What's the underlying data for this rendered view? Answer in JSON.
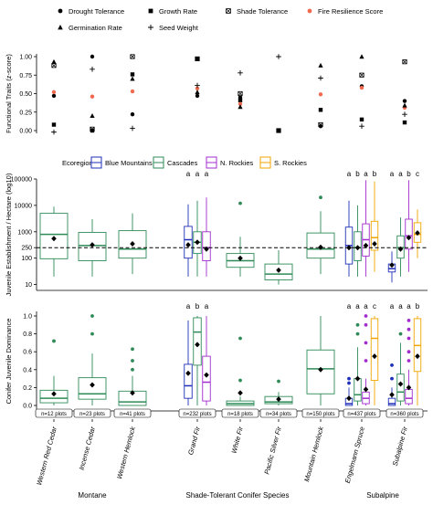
{
  "chart_data": [
    {
      "type": "scatter",
      "panel": "functional-traits",
      "ylabel": "Functional Traits (z-score)",
      "ylim": [
        0,
        1
      ],
      "yticks": [
        "0.00",
        "0.25",
        "0.50",
        "0.75",
        "1.00"
      ],
      "categories": [
        "Western Red Cedar",
        "Incense Cedar",
        "Western Hemlock",
        "Grand Fir",
        "White Fir",
        "Pacific Silver Fir",
        "Mountain Hemlock",
        "Engelmann Spruce",
        "Subalpine Fir"
      ],
      "legend": [
        "Drought Tolerance",
        "Growth Rate",
        "Shade Tolerance",
        "Fire Resilience Score",
        "Germination Rate",
        "Seed Weight"
      ],
      "series": [
        {
          "name": "Drought Tolerance",
          "marker": "circle",
          "color": "#000000",
          "values": [
            0.47,
            1.0,
            0.22,
            0.47,
            0.45,
            null,
            0.06,
            0.6,
            0.4
          ]
        },
        {
          "name": "Growth Rate",
          "marker": "square",
          "color": "#000000",
          "values": [
            0.08,
            0.0,
            0.76,
            0.97,
            0.41,
            0.0,
            0.28,
            0.15,
            0.11
          ]
        },
        {
          "name": "Shade Tolerance",
          "marker": "boxx",
          "color": "#000000",
          "values": [
            0.88,
            0.02,
            1.0,
            0.97,
            0.5,
            0.0,
            0.08,
            0.75,
            0.93
          ]
        },
        {
          "name": "Fire Resilience Score",
          "marker": "circle",
          "color": "#f06a50",
          "values": [
            0.52,
            0.46,
            0.53,
            0.57,
            0.36,
            null,
            0.49,
            0.58,
            0.31
          ]
        },
        {
          "name": "Germination Rate",
          "marker": "triangle",
          "color": "#000000",
          "values": [
            0.93,
            0.2,
            0.7,
            0.52,
            0.32,
            null,
            0.88,
            1.0,
            0.34
          ]
        },
        {
          "name": "Seed Weight",
          "marker": "plus",
          "color": "#000000",
          "values": [
            -0.02,
            0.83,
            0.03,
            0.61,
            0.78,
            1.0,
            0.71,
            0.06,
            0.22
          ]
        }
      ]
    },
    {
      "type": "box",
      "panel": "juvenile-establishment",
      "ylabel": "Juvenile Establishment / Hectare (log10)",
      "scale": "log",
      "ylim": [
        6,
        100000
      ],
      "yticks": [
        "10",
        "100",
        "250",
        "1000",
        "10000",
        "100000"
      ],
      "reference_line": 250,
      "legend_title": "Ecoregion",
      "legend": [
        {
          "name": "Blue Mountains",
          "color": "#1f2fb8"
        },
        {
          "name": "Cascades",
          "color": "#2e8b57"
        },
        {
          "name": "N. Rockies",
          "color": "#a32ccf"
        },
        {
          "name": "S. Rockies",
          "color": "#f0a500"
        }
      ],
      "groups": [
        {
          "species": "Western Red Cedar",
          "boxes": [
            {
              "ecoregion": "Cascades",
              "whisker_low": 20,
              "q1": 95,
              "median": 800,
              "q3": 5000,
              "whisker_high": 9000,
              "mean": 550,
              "outliers": []
            }
          ]
        },
        {
          "species": "Incense Cedar",
          "boxes": [
            {
              "ecoregion": "Cascades",
              "whisker_low": 20,
              "q1": 80,
              "median": 300,
              "q3": 950,
              "whisker_high": 3000,
              "mean": 320,
              "outliers": []
            }
          ]
        },
        {
          "species": "Western Hemlock",
          "boxes": [
            {
              "ecoregion": "Cascades",
              "whisker_low": 25,
              "q1": 100,
              "median": 220,
              "q3": 1100,
              "whisker_high": 5000,
              "mean": 350,
              "outliers": []
            }
          ]
        },
        {
          "species": "Grand Fir",
          "letters": [
            "a",
            "a",
            "a"
          ],
          "boxes": [
            {
              "ecoregion": "Blue Mountains",
              "whisker_low": 20,
              "q1": 100,
              "median": 500,
              "q3": 1600,
              "whisker_high": 11000,
              "mean": 320,
              "outliers": []
            },
            {
              "ecoregion": "Cascades",
              "whisker_low": 20,
              "q1": 150,
              "median": 400,
              "q3": 1000,
              "whisker_high": 15000,
              "mean": 400,
              "outliers": []
            },
            {
              "ecoregion": "N. Rockies",
              "whisker_low": 20,
              "q1": 80,
              "median": 250,
              "q3": 1000,
              "whisker_high": 20000,
              "mean": 220,
              "outliers": []
            }
          ]
        },
        {
          "species": "White Fir",
          "boxes": [
            {
              "ecoregion": "Cascades",
              "whisker_low": 20,
              "q1": 45,
              "median": 80,
              "q3": 150,
              "whisker_high": 650,
              "mean": 100,
              "outliers": [
                12000
              ]
            }
          ]
        },
        {
          "species": "Pacific Silver Fir",
          "boxes": [
            {
              "ecoregion": "Cascades",
              "whisker_low": 10,
              "q1": 15,
              "median": 25,
              "q3": 60,
              "whisker_high": 200,
              "mean": 35,
              "outliers": []
            }
          ]
        },
        {
          "species": "Mountain Hemlock",
          "boxes": [
            {
              "ecoregion": "Cascades",
              "whisker_low": 25,
              "q1": 100,
              "median": 220,
              "q3": 900,
              "whisker_high": 6000,
              "mean": 260,
              "outliers": [
                20000
              ]
            }
          ]
        },
        {
          "species": "Engelmann Spruce",
          "letters": [
            "a",
            "b",
            "a",
            "b"
          ],
          "boxes": [
            {
              "ecoregion": "Blue Mountains",
              "whisker_low": 20,
              "q1": 60,
              "median": 300,
              "q3": 1500,
              "whisker_high": 15000,
              "mean": 250,
              "outliers": []
            },
            {
              "ecoregion": "Cascades",
              "whisker_low": 20,
              "q1": 80,
              "median": 250,
              "q3": 1000,
              "whisker_high": 10000,
              "mean": 250,
              "outliers": []
            },
            {
              "ecoregion": "N. Rockies",
              "whisker_low": 20,
              "q1": 120,
              "median": 500,
              "q3": 2000,
              "whisker_high": 90000,
              "mean": 300,
              "outliers": []
            },
            {
              "ecoregion": "S. Rockies",
              "whisker_low": 30,
              "q1": 200,
              "median": 600,
              "q3": 2500,
              "whisker_high": 80000,
              "mean": 350,
              "outliers": []
            }
          ]
        },
        {
          "species": "Subalpine Fir",
          "letters": [
            "a",
            "a",
            "b",
            "c"
          ],
          "boxes": [
            {
              "ecoregion": "Blue Mountains",
              "whisker_low": 12,
              "q1": 30,
              "median": 40,
              "q3": 60,
              "whisker_high": 180,
              "mean": 55,
              "outliers": []
            },
            {
              "ecoregion": "Cascades",
              "whisker_low": 20,
              "q1": 100,
              "median": 250,
              "q3": 700,
              "whisker_high": 3500,
              "mean": 220,
              "outliers": []
            },
            {
              "ecoregion": "N. Rockies",
              "whisker_low": 30,
              "q1": 220,
              "median": 700,
              "q3": 3000,
              "whisker_high": 90000,
              "mean": 600,
              "outliers": []
            },
            {
              "ecoregion": "S. Rockies",
              "whisker_low": 100,
              "q1": 400,
              "median": 800,
              "q3": 2200,
              "whisker_high": 7000,
              "mean": 900,
              "outliers": []
            }
          ]
        }
      ]
    },
    {
      "type": "box",
      "panel": "conifer-juvenile-dominance",
      "ylabel": "Conifer Juvenile Dominance",
      "ylim": [
        0,
        1
      ],
      "yticks": [
        "0.0",
        "0.2",
        "0.4",
        "0.6",
        "0.8",
        "1.0"
      ],
      "groups": [
        {
          "species": "Western Red Cedar",
          "n": "n=12 plots",
          "boxes": [
            {
              "ecoregion": "Cascades",
              "whisker_low": 0.0,
              "q1": 0.03,
              "median": 0.08,
              "q3": 0.17,
              "whisker_high": 0.33,
              "mean": 0.13,
              "outliers": [
                0.72
              ]
            }
          ]
        },
        {
          "species": "Incense Cedar",
          "n": "n=23 plots",
          "boxes": [
            {
              "ecoregion": "Cascades",
              "whisker_low": 0.0,
              "q1": 0.07,
              "median": 0.13,
              "q3": 0.31,
              "whisker_high": 0.58,
              "mean": 0.23,
              "outliers": [
                0.8,
                1.0
              ]
            }
          ]
        },
        {
          "species": "Western Hemlock",
          "n": "n=41 plots",
          "boxes": [
            {
              "ecoregion": "Cascades",
              "whisker_low": 0.0,
              "q1": 0.0,
              "median": 0.04,
              "q3": 0.16,
              "whisker_high": 0.33,
              "mean": 0.14,
              "outliers": [
                0.4,
                0.5,
                0.63
              ]
            }
          ]
        },
        {
          "species": "Grand Fir",
          "n": "n=232 plots",
          "letters": [
            "a",
            "b",
            "a"
          ],
          "boxes": [
            {
              "ecoregion": "Blue Mountains",
              "whisker_low": 0.0,
              "q1": 0.08,
              "median": 0.22,
              "q3": 0.46,
              "whisker_high": 0.95,
              "mean": 0.36,
              "outliers": []
            },
            {
              "ecoregion": "Cascades",
              "whisker_low": 0.0,
              "q1": 0.45,
              "median": 0.82,
              "q3": 0.98,
              "whisker_high": 1.0,
              "mean": 0.68,
              "outliers": []
            },
            {
              "ecoregion": "N. Rockies",
              "whisker_low": 0.0,
              "q1": 0.05,
              "median": 0.26,
              "q3": 0.55,
              "whisker_high": 1.0,
              "mean": 0.34,
              "outliers": []
            }
          ]
        },
        {
          "species": "White Fir",
          "n": "n=18 plots",
          "boxes": [
            {
              "ecoregion": "Cascades",
              "whisker_low": 0.0,
              "q1": 0.0,
              "median": 0.02,
              "q3": 0.05,
              "whisker_high": 0.1,
              "mean": 0.14,
              "outliers": [
                0.28,
                0.75
              ]
            }
          ]
        },
        {
          "species": "Pacific Silver Fir",
          "n": "n=34 plots",
          "boxes": [
            {
              "ecoregion": "Cascades",
              "whisker_low": 0.0,
              "q1": 0.02,
              "median": 0.04,
              "q3": 0.1,
              "whisker_high": 0.15,
              "mean": 0.07,
              "outliers": [
                0.27
              ]
            }
          ]
        },
        {
          "species": "Mountain Hemlock",
          "n": "n=150 plots",
          "boxes": [
            {
              "ecoregion": "Cascades",
              "whisker_low": 0.0,
              "q1": 0.13,
              "median": 0.41,
              "q3": 0.62,
              "whisker_high": 1.0,
              "mean": 0.4,
              "outliers": []
            }
          ]
        },
        {
          "species": "Engelmann Spruce",
          "n": "n=437 plots",
          "letters": [
            "a",
            "a",
            "a",
            "c"
          ],
          "boxes": [
            {
              "ecoregion": "Blue Mountains",
              "whisker_low": 0.0,
              "q1": 0.0,
              "median": 0.02,
              "q3": 0.08,
              "whisker_high": 0.2,
              "mean": 0.08,
              "outliers": [
                0.25,
                0.3
              ]
            },
            {
              "ecoregion": "Cascades",
              "whisker_low": 0.0,
              "q1": 0.05,
              "median": 0.12,
              "q3": 0.3,
              "whisker_high": 0.65,
              "mean": 0.3,
              "outliers": [
                0.8,
                0.9
              ]
            },
            {
              "ecoregion": "N. Rockies",
              "whisker_low": 0.0,
              "q1": 0.02,
              "median": 0.08,
              "q3": 0.15,
              "whisker_high": 0.3,
              "mean": 0.18,
              "outliers": [
                0.5,
                0.7,
                0.9,
                1.0
              ]
            },
            {
              "ecoregion": "S. Rockies",
              "whisker_low": 0.0,
              "q1": 0.28,
              "median": 0.75,
              "q3": 0.97,
              "whisker_high": 1.0,
              "mean": 0.55,
              "outliers": []
            }
          ]
        },
        {
          "species": "Subalpine Fir",
          "n": "n=360 plots",
          "letters": [
            "a",
            "a",
            "a",
            "b"
          ],
          "boxes": [
            {
              "ecoregion": "Blue Mountains",
              "whisker_low": 0.0,
              "q1": 0.0,
              "median": 0.02,
              "q3": 0.08,
              "whisker_high": 0.2,
              "mean": 0.12,
              "outliers": [
                0.3,
                0.45
              ]
            },
            {
              "ecoregion": "Cascades",
              "whisker_low": 0.0,
              "q1": 0.05,
              "median": 0.15,
              "q3": 0.35,
              "whisker_high": 0.7,
              "mean": 0.24,
              "outliers": [
                0.8
              ]
            },
            {
              "ecoregion": "N. Rockies",
              "whisker_low": 0.0,
              "q1": 0.02,
              "median": 0.08,
              "q3": 0.18,
              "whisker_high": 0.4,
              "mean": 0.2,
              "outliers": [
                0.5,
                0.6,
                0.75,
                0.85,
                0.95
              ]
            },
            {
              "ecoregion": "S. Rockies",
              "whisker_low": 0.0,
              "q1": 0.38,
              "median": 0.67,
              "q3": 0.97,
              "whisker_high": 1.0,
              "mean": 0.55,
              "outliers": []
            }
          ]
        }
      ]
    }
  ],
  "x_axis": {
    "group_labels": [
      {
        "label": "Montane",
        "from": 0,
        "to": 2
      },
      {
        "label": "Shade-Tolerant Conifer Species",
        "from": 3,
        "to": 6
      },
      {
        "label": "Subalpine",
        "from": 7,
        "to": 8
      }
    ]
  }
}
